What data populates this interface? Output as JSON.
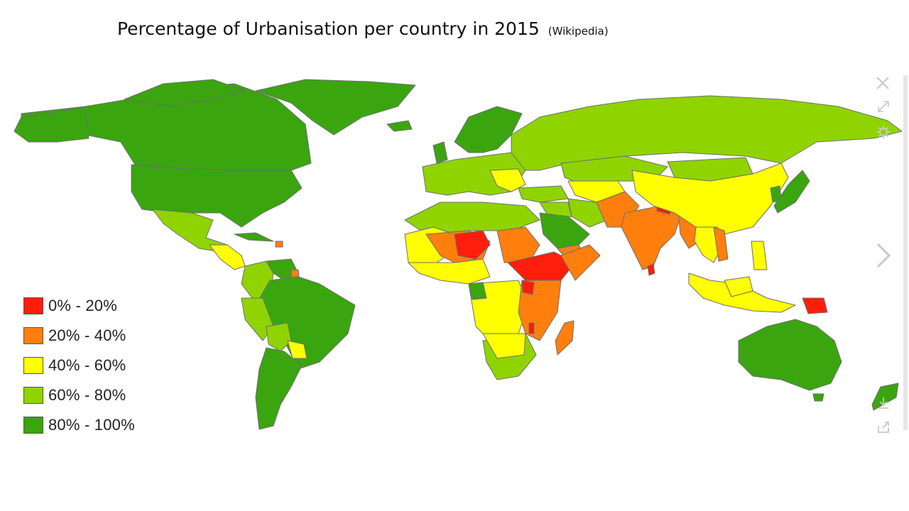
{
  "title": "Percentage of Urbanisation per country in 2015",
  "source": "(Wikipedia)",
  "colors": {
    "c0_20": "#ff1e0b",
    "c20_40": "#ff7f0e",
    "c40_60": "#ffff00",
    "c60_80": "#8fd400",
    "c80_100": "#3aa50f",
    "border": "#6e6e6e",
    "ocean": "#ffffff"
  },
  "legend": [
    {
      "label": "0% - 20%",
      "color": "#ff1e0b"
    },
    {
      "label": "20% - 40%",
      "color": "#ff7f0e"
    },
    {
      "label": "40% - 60%",
      "color": "#ffff00"
    },
    {
      "label": "60% - 80%",
      "color": "#8fd400"
    },
    {
      "label": "80% - 100%",
      "color": "#3aa50f"
    }
  ],
  "viewer_controls": [
    "close-icon",
    "expand-icon",
    "gear-icon",
    "next-arrow-icon",
    "download-icon",
    "share-icon"
  ]
}
